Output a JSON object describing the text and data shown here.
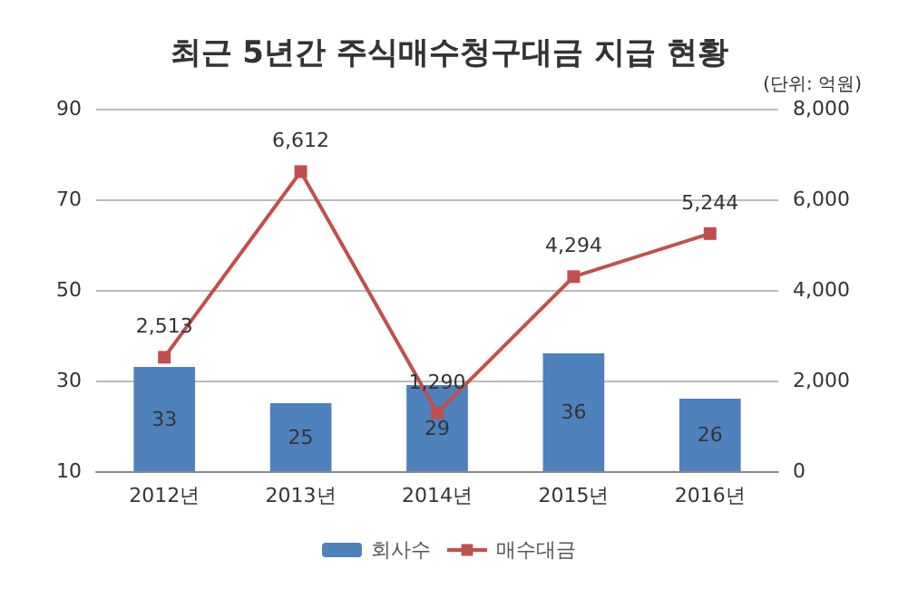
{
  "chart_data": {
    "type": "bar",
    "title": "최근 5년간 주식매수청구대금 지급 현황",
    "annotations": [
      "(단위: 억원)"
    ],
    "categories": [
      "2012년",
      "2013년",
      "2014년",
      "2015년",
      "2016년"
    ],
    "series": [
      {
        "name": "회사수",
        "color": "#4f81bd",
        "values": [
          33,
          25,
          29,
          36,
          26
        ],
        "value_labels": [
          "33",
          "25",
          "29",
          "36",
          "26"
        ]
      },
      {
        "name": "매수대금",
        "type": "line",
        "axis": "y2",
        "color": "#c0504d",
        "marker": "square",
        "values": [
          2513,
          6612,
          1290,
          4294,
          5244
        ],
        "value_labels": [
          "2,513",
          "6,612",
          "1,290",
          "4,294",
          "5,244"
        ]
      }
    ],
    "ylim": [
      10,
      90
    ],
    "yticks": [
      10,
      30,
      50,
      70,
      90
    ],
    "y2lim": [
      0,
      8000
    ],
    "y2ticks": [
      0,
      {
        "value": 2000,
        "label": "2,000"
      },
      {
        "value": 4000,
        "label": "4,000"
      },
      {
        "value": 6000,
        "label": "6,000"
      },
      {
        "value": 8000,
        "label": "8,000"
      }
    ],
    "grid": "y",
    "legend": "bottom"
  }
}
